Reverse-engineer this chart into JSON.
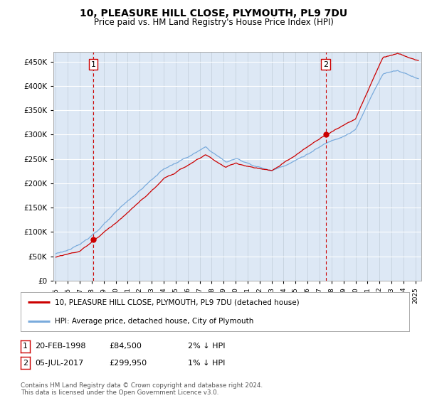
{
  "title": "10, PLEASURE HILL CLOSE, PLYMOUTH, PL9 7DU",
  "subtitle": "Price paid vs. HM Land Registry's House Price Index (HPI)",
  "ylim": [
    0,
    470000
  ],
  "yticks": [
    0,
    50000,
    100000,
    150000,
    200000,
    250000,
    300000,
    350000,
    400000,
    450000
  ],
  "xmin": 1994.8,
  "xmax": 2025.5,
  "sale1_x": 1998.13,
  "sale1_y": 84500,
  "sale1_label": "1",
  "sale1_date": "20-FEB-1998",
  "sale1_price": "£84,500",
  "sale1_hpi": "2% ↓ HPI",
  "sale2_x": 2017.51,
  "sale2_y": 299950,
  "sale2_label": "2",
  "sale2_date": "05-JUL-2017",
  "sale2_price": "£299,950",
  "sale2_hpi": "1% ↓ HPI",
  "hpi_color": "#7aabdc",
  "price_color": "#cc0000",
  "legend_label1": "10, PLEASURE HILL CLOSE, PLYMOUTH, PL9 7DU (detached house)",
  "legend_label2": "HPI: Average price, detached house, City of Plymouth",
  "footer": "Contains HM Land Registry data © Crown copyright and database right 2024.\nThis data is licensed under the Open Government Licence v3.0.",
  "plot_bg": "#dde8f5"
}
